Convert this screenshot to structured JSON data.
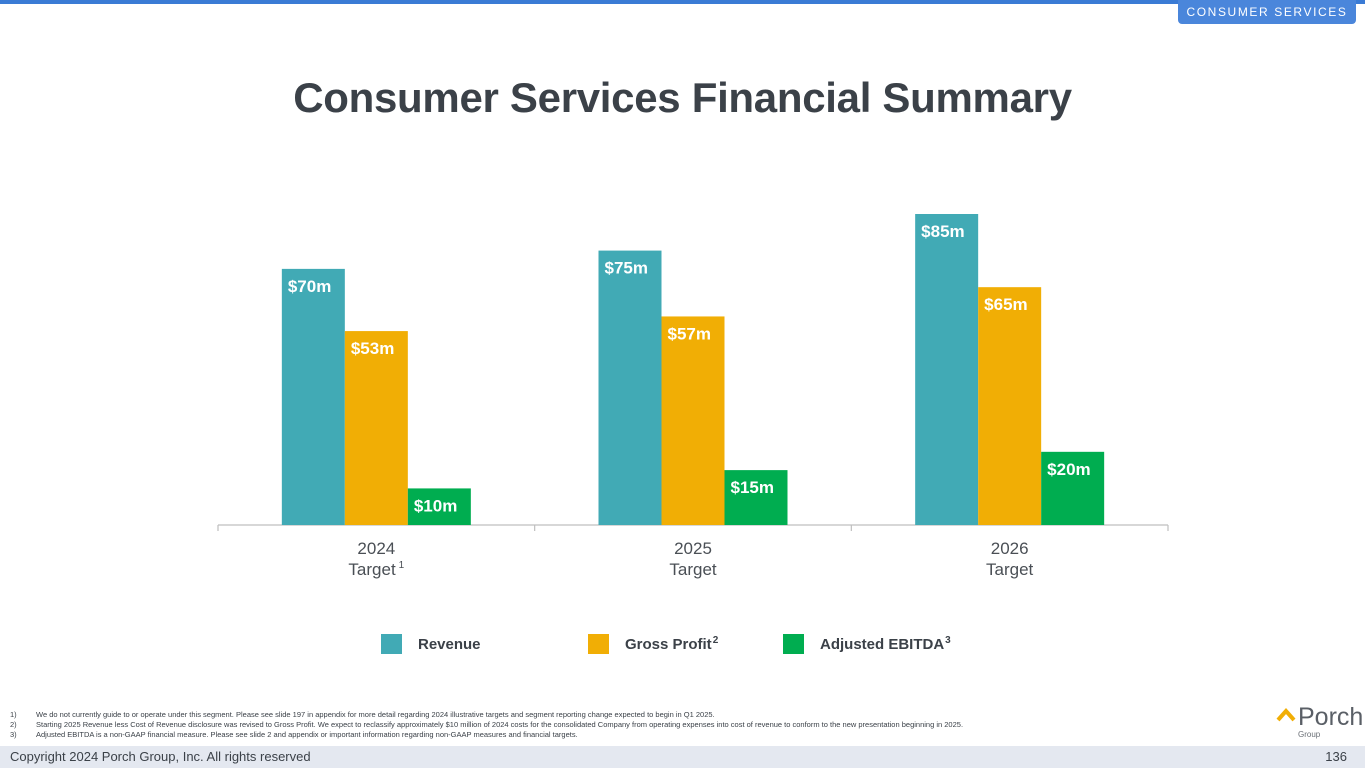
{
  "section_tag": "CONSUMER SERVICES",
  "title": "Consumer Services Financial Summary",
  "chart_data": {
    "type": "bar",
    "categories": [
      {
        "line1": "2024",
        "line2": "Target",
        "sup": "1"
      },
      {
        "line1": "2025",
        "line2": "Target",
        "sup": ""
      },
      {
        "line1": "2026",
        "line2": "Target",
        "sup": ""
      }
    ],
    "series": [
      {
        "name": "Revenue",
        "sup": "",
        "color": "#41aab5",
        "values": [
          70,
          75,
          85
        ],
        "labels": [
          "$70m",
          "$75m",
          "$85m"
        ]
      },
      {
        "name": "Gross Profit",
        "sup": "2",
        "color": "#f1ae05",
        "values": [
          53,
          57,
          65
        ],
        "labels": [
          "$53m",
          "$57m",
          "$65m"
        ]
      },
      {
        "name": "Adjusted EBITDA",
        "sup": "3",
        "color": "#00ad50",
        "values": [
          10,
          15,
          20
        ],
        "labels": [
          "$10m",
          "$15m",
          "$20m"
        ]
      }
    ],
    "ylim": [
      0,
      85
    ],
    "grid": false,
    "legend_position": "bottom"
  },
  "footnotes": [
    {
      "num": "1)",
      "text": "We do not currently guide to or operate under this segment. Please see slide 197 in appendix for more detail regarding 2024 illustrative targets and segment reporting change expected to begin in Q1 2025."
    },
    {
      "num": "2)",
      "text": "Starting 2025 Revenue less Cost of Revenue disclosure was revised to Gross Profit. We expect to reclassify approximately $10 million of 2024 costs for the consolidated Company from operating expenses into cost of revenue to conform to the new presentation beginning in 2025."
    },
    {
      "num": "3)",
      "text": "Adjusted EBITDA is a non-GAAP financial measure. Please see slide 2 and appendix or important information regarding non-GAAP measures and financial targets."
    }
  ],
  "logo": {
    "word": "Porch",
    "sub": "Group",
    "accent_color": "#f1ae05"
  },
  "copyright": "Copyright 2024 Porch Group, Inc. All rights reserved",
  "page_number": "136"
}
